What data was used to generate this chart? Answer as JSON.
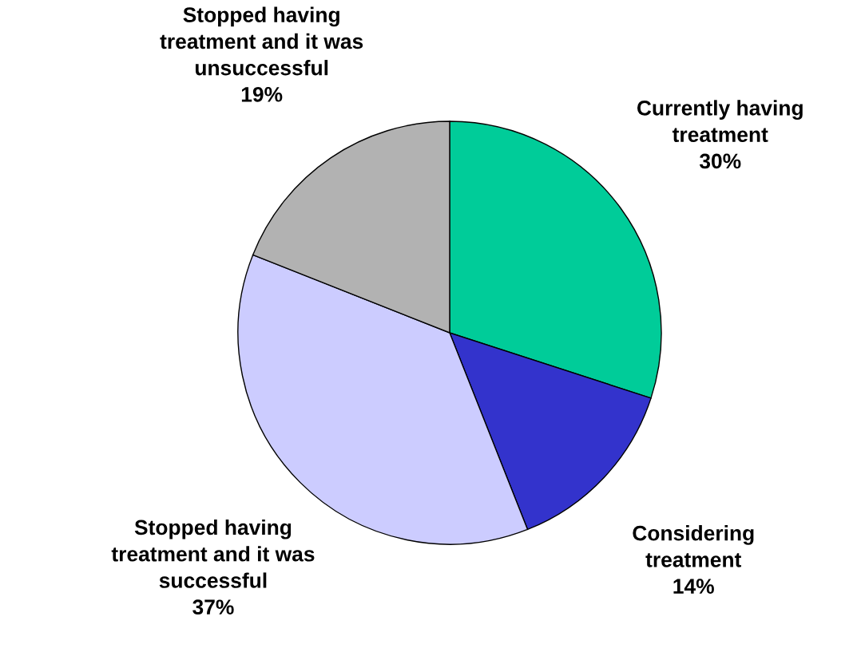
{
  "chart_data": {
    "type": "pie",
    "categories": [
      "Currently having\ntreatment",
      "Considering\ntreatment",
      "Stopped having\ntreatment and it was\nsuccessful",
      "Stopped having\ntreatment and it was\nunsuccessful"
    ],
    "values": [
      30,
      14,
      37,
      19
    ],
    "value_labels": [
      "30%",
      "14%",
      "37%",
      "19%"
    ],
    "colors": [
      "#00cc99",
      "#3333cc",
      "#ccccff",
      "#b2b2b2"
    ],
    "legend": false
  }
}
